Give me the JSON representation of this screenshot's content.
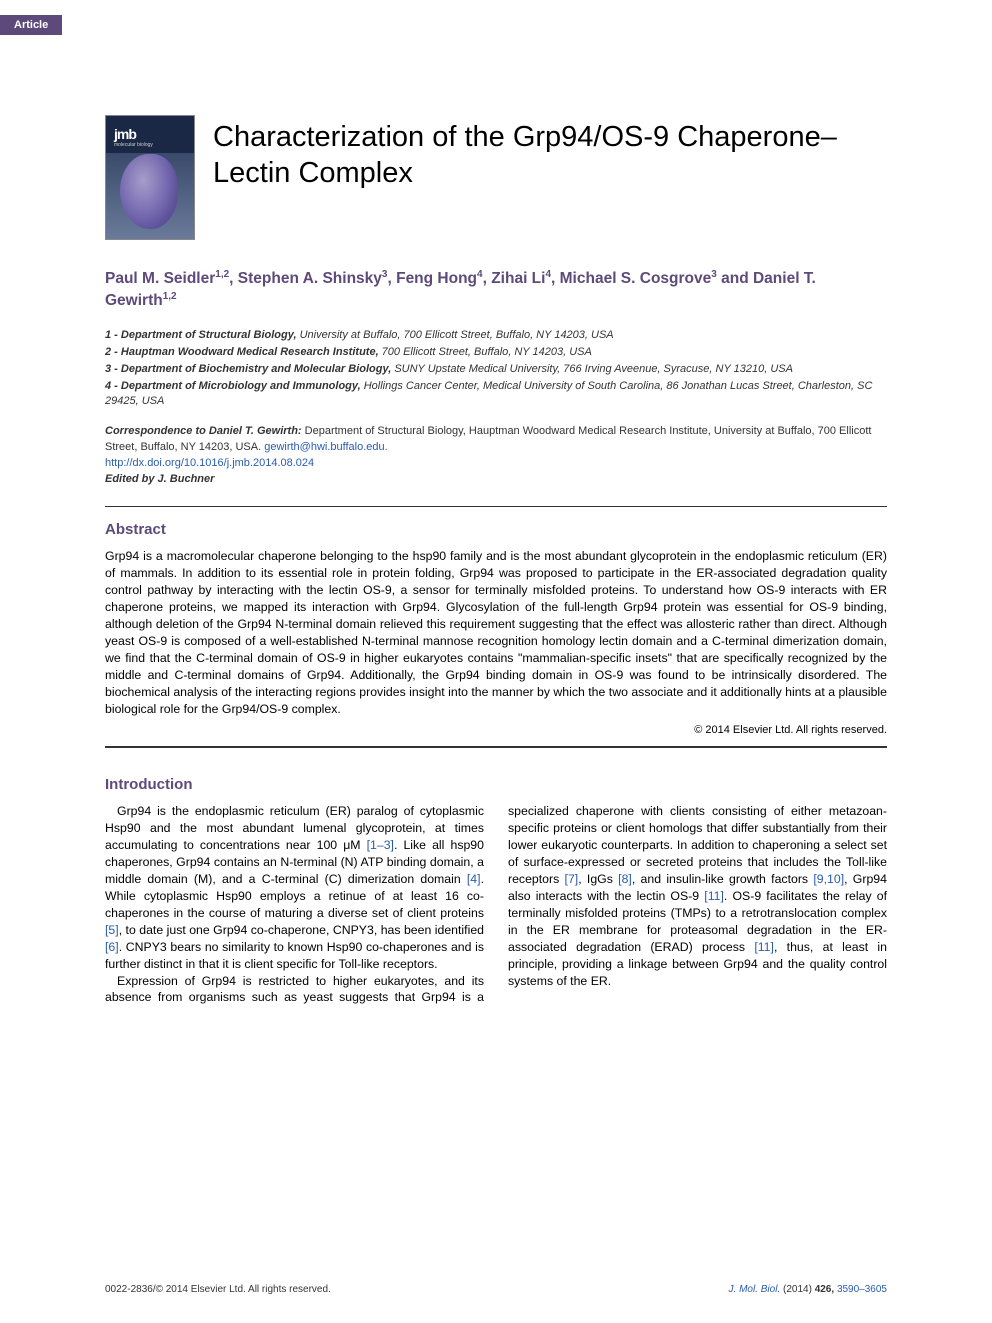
{
  "badge": "Article",
  "cover": {
    "label": "jmb",
    "sublabel": "molecular biology"
  },
  "title": "Characterization of the Grp94/OS-9 Chaperone–Lectin Complex",
  "authors_html": "Paul M. Seidler<sup>1,2</sup>, Stephen A. Shinsky<sup>3</sup>, Feng Hong<sup>4</sup>, Zihai Li<sup>4</sup>, Michael S. Cosgrove<sup>3</sup> and Daniel T. Gewirth<sup>1,2</sup>",
  "affiliations": [
    {
      "n": "1",
      "dept": "Department of Structural Biology,",
      "rest": " University at Buffalo, 700 Ellicott Street, Buffalo, NY 14203, USA"
    },
    {
      "n": "2",
      "dept": "Hauptman Woodward Medical Research Institute,",
      "rest": " 700 Ellicott Street, Buffalo, NY 14203, USA"
    },
    {
      "n": "3",
      "dept": "Department of Biochemistry and Molecular Biology,",
      "rest": " SUNY Upstate Medical University, 766 Irving Aveenue, Syracuse, NY 13210, USA"
    },
    {
      "n": "4",
      "dept": "Department of Microbiology and Immunology,",
      "rest": " Hollings Cancer Center, Medical University of South Carolina, 86 Jonathan Lucas Street, Charleston, SC 29425, USA"
    }
  ],
  "correspondence": {
    "label": "Correspondence to Daniel T. Gewirth:",
    "text": " Department of Structural Biology, Hauptman Woodward Medical Research Institute, University at Buffalo, 700 Ellicott Street, Buffalo, NY 14203, USA. ",
    "email": "gewirth@hwi.buffalo.edu.",
    "doi": "http://dx.doi.org/10.1016/j.jmb.2014.08.024",
    "editor_label": "Edited by J. Buchner"
  },
  "abstract": {
    "heading": "Abstract",
    "text": "Grp94 is a macromolecular chaperone belonging to the hsp90 family and is the most abundant glycoprotein in the endoplasmic reticulum (ER) of mammals. In addition to its essential role in protein folding, Grp94 was proposed to participate in the ER-associated degradation quality control pathway by interacting with the lectin OS-9, a sensor for terminally misfolded proteins. To understand how OS-9 interacts with ER chaperone proteins, we mapped its interaction with Grp94. Glycosylation of the full-length Grp94 protein was essential for OS-9 binding, although deletion of the Grp94 N-terminal domain relieved this requirement suggesting that the effect was allosteric rather than direct. Although yeast OS-9 is composed of a well-established N-terminal mannose recognition homology lectin domain and a C-terminal dimerization domain, we find that the C-terminal domain of OS-9 in higher eukaryotes contains \"mammalian-specific insets\" that are specifically recognized by the middle and C-terminal domains of Grp94. Additionally, the Grp94 binding domain in OS-9 was found to be intrinsically disordered. The biochemical analysis of the interacting regions provides insight into the manner by which the two associate and it additionally hints at a plausible biological role for the Grp94/OS-9 complex.",
    "copyright": "© 2014 Elsevier Ltd. All rights reserved."
  },
  "intro": {
    "heading": "Introduction",
    "para1_html": "Grp94 is the endoplasmic reticulum (ER) paralog of cytoplasmic Hsp90 and the most abundant lumenal glycoprotein, at times accumulating to concentrations near 100 μM <span class=\"ref\">[1–3]</span>. Like all hsp90 chaperones, Grp94 contains an N-terminal (N) ATP binding domain, a middle domain (M), and a C-terminal (C) dimerization domain <span class=\"ref\">[4]</span>. While cytoplasmic Hsp90 employs a retinue of at least 16 co-chaperones in the course of maturing a diverse set of client proteins <span class=\"ref\">[5]</span>, to date just one Grp94 co-chaperone, CNPY3, has been identified <span class=\"ref\">[6]</span>. CNPY3 bears no similarity to known Hsp90 co-chaperones and is further distinct in that it is client specific for Toll-like receptors.",
    "para2_html": "Expression of Grp94 is restricted to higher eukaryotes, and its absence from organisms such as yeast suggests that Grp94 is a specialized chaperone with clients consisting of either metazoan-specific proteins or client homologs that differ substantially from their lower eukaryotic counterparts. In addition to chaperoning a select set of surface-expressed or secreted proteins that includes the Toll-like receptors <span class=\"ref\">[7]</span>, IgGs <span class=\"ref\">[8]</span>, and insulin-like growth factors <span class=\"ref\">[9,10]</span>, Grp94 also interacts with the lectin OS-9 <span class=\"ref\">[11]</span>. OS-9 facilitates the relay of terminally misfolded proteins (TMPs) to a retrotranslocation complex in the ER membrane for proteasomal degradation in the ER-associated degradation (ERAD) process <span class=\"ref\">[11]</span>, thus, at least in principle, providing a linkage between Grp94 and the quality control systems of the ER."
  },
  "footer": {
    "left": "0022-2836/© 2014 Elsevier Ltd. All rights reserved.",
    "journal": "J. Mol. Biol.",
    "year": "(2014)",
    "vol": "426,",
    "pages": "3590–3605"
  },
  "colors": {
    "accent": "#5d4a7a",
    "link": "#2a5cae",
    "badge_bg": "#5d4a7a",
    "text": "#000000"
  }
}
